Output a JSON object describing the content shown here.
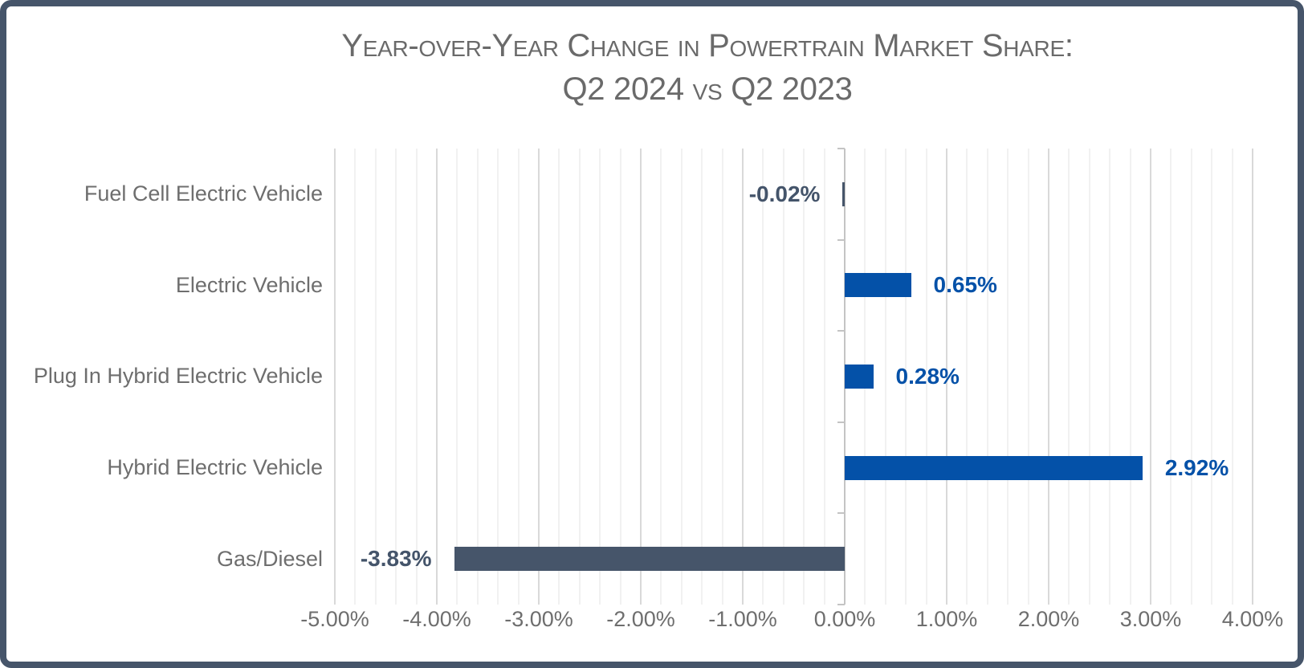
{
  "title": {
    "line1": "Year-over-Year Change in Powertrain Market Share:",
    "line2": "Q2 2024 vs Q2 2023"
  },
  "chart_data": {
    "type": "bar",
    "orientation": "horizontal",
    "title": "Year-over-Year Change in Powertrain Market Share: Q2 2024 vs Q2 2023",
    "categories": [
      "Fuel Cell Electric Vehicle",
      "Electric Vehicle",
      "Plug In Hybrid Electric Vehicle",
      "Hybrid Electric Vehicle",
      "Gas/Diesel"
    ],
    "values": [
      -0.02,
      0.65,
      0.28,
      2.92,
      -3.83
    ],
    "value_labels": [
      "-0.02%",
      "0.65%",
      "0.28%",
      "2.92%",
      "-3.83%"
    ],
    "xlabel": "",
    "ylabel": "",
    "xlim": [
      -5,
      4
    ],
    "x_major_step": 1,
    "x_minor_step": 0.2,
    "x_tick_labels": [
      "-5.00%",
      "-4.00%",
      "-3.00%",
      "-2.00%",
      "-1.00%",
      "0.00%",
      "1.00%",
      "2.00%",
      "3.00%",
      "4.00%"
    ],
    "grid": "vertical minor + major, no horizontal",
    "legend": "none",
    "colors": {
      "positive_bar": "#0451A8",
      "negative_bar": "#46556A",
      "positive_label": "#0451A8",
      "negative_label": "#44546A",
      "frame_border": "#46556A",
      "title_text": "#6A6A6A",
      "axis_text": "#6E6E6E"
    }
  }
}
